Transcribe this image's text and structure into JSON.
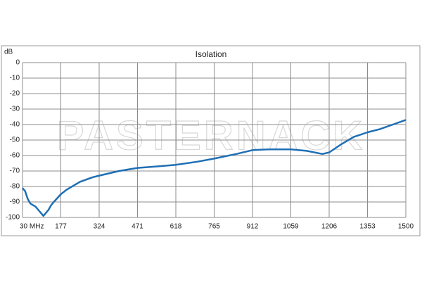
{
  "chart_data": {
    "type": "line",
    "title": "Isolation",
    "y_label": "dB",
    "watermark": "PASTERNACK",
    "x": [
      30,
      40,
      50,
      60,
      70,
      80,
      90,
      100,
      110,
      120,
      130,
      140,
      150,
      177,
      200,
      250,
      300,
      324,
      400,
      471,
      550,
      618,
      700,
      765,
      850,
      912,
      980,
      1059,
      1120,
      1180,
      1206,
      1250,
      1300,
      1353,
      1400,
      1450,
      1500
    ],
    "series": [
      {
        "name": "Isolation",
        "color": "#1f6fb4",
        "values": [
          -81,
          -83,
          -88,
          -91,
          -92,
          -93,
          -95,
          -97,
          -99,
          -97,
          -95,
          -92,
          -90,
          -85,
          -82,
          -77,
          -74,
          -73,
          -70,
          -68,
          -67,
          -66,
          -64,
          -62,
          -59,
          -56.5,
          -56,
          -56,
          -57,
          -59,
          -58,
          -53,
          -48,
          -45,
          -43,
          -40,
          -37
        ]
      }
    ],
    "xlim": [
      30,
      1500
    ],
    "xticks": [
      {
        "value": 30,
        "label": "30 MHz"
      },
      177,
      324,
      471,
      618,
      765,
      912,
      1059,
      1206,
      1353,
      1500
    ],
    "ylim": [
      -100,
      0
    ],
    "yticks": [
      0,
      -10,
      -20,
      -30,
      -40,
      -50,
      -60,
      -70,
      -80,
      -90,
      -100
    ],
    "grid": true
  }
}
